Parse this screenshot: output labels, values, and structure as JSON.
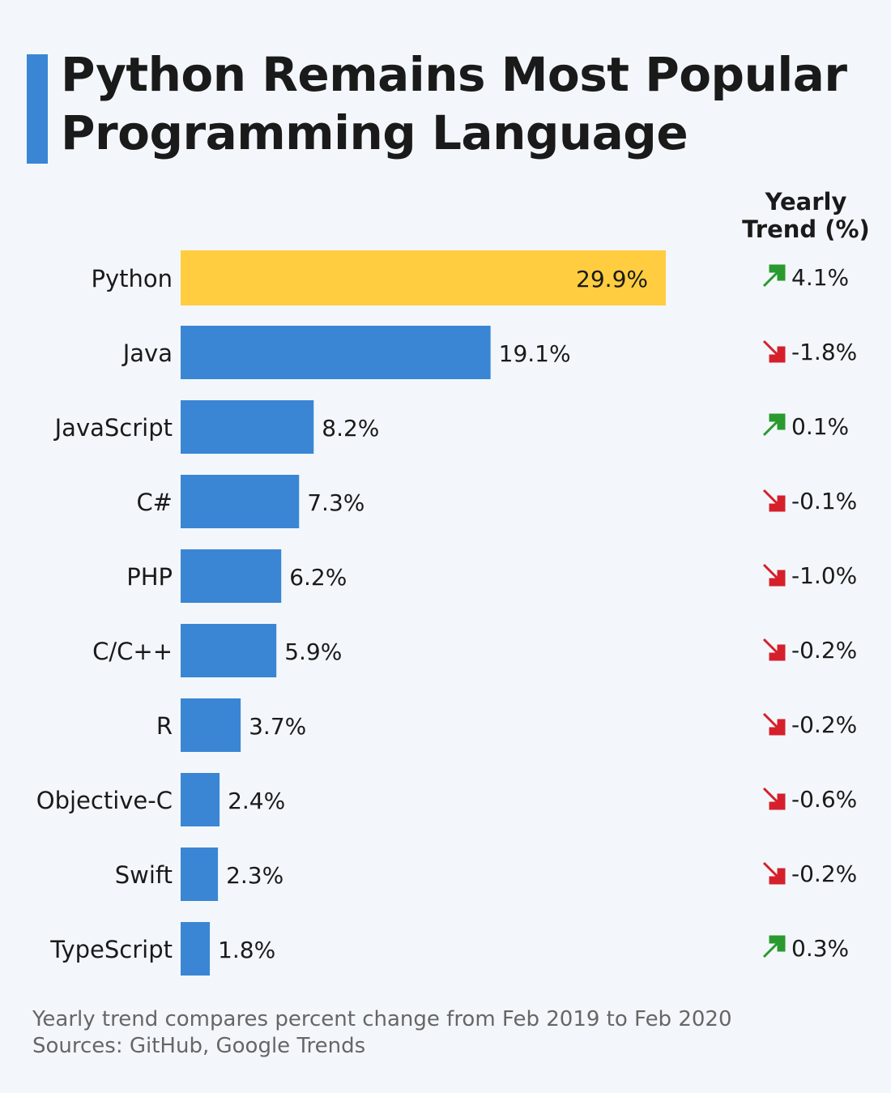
{
  "title": "Python Remains Most Popular Programming Language",
  "chart_data": {
    "type": "bar",
    "orientation": "horizontal",
    "title": "Python Remains Most Popular Programming Language",
    "categories": [
      "Python",
      "Java",
      "JavaScript",
      "C#",
      "PHP",
      "C/C++",
      "R",
      "Objective-C",
      "Swift",
      "TypeScript"
    ],
    "values": [
      29.9,
      19.1,
      8.2,
      7.3,
      6.2,
      5.9,
      3.7,
      2.4,
      2.3,
      1.8
    ],
    "value_labels": [
      "29.9%",
      "19.1%",
      "8.2%",
      "7.3%",
      "6.2%",
      "5.9%",
      "3.7%",
      "2.4%",
      "2.3%",
      "1.8%"
    ],
    "highlight_index": 0,
    "colors": {
      "bar": "#3a86d4",
      "highlight": "#ffcd3f",
      "up": "#2a9a2f",
      "down": "#d5202c"
    },
    "trend_header": "Yearly Trend (%)",
    "trend_values": [
      4.1,
      -1.8,
      0.1,
      -0.1,
      -1.0,
      -0.2,
      -0.2,
      -0.6,
      -0.2,
      0.3
    ],
    "trend_labels": [
      "4.1%",
      "-1.8%",
      "0.1%",
      "-0.1%",
      "-1.0%",
      "-0.2%",
      "-0.2%",
      "-0.6%",
      "-0.2%",
      "0.3%"
    ],
    "grid": false
  },
  "trend_header_line1": "Yearly",
  "trend_header_line2": "Trend (%)",
  "footer": {
    "note": "Yearly trend compares percent change from Feb 2019 to Feb 2020",
    "sources": "Sources: GitHub, Google Trends"
  }
}
